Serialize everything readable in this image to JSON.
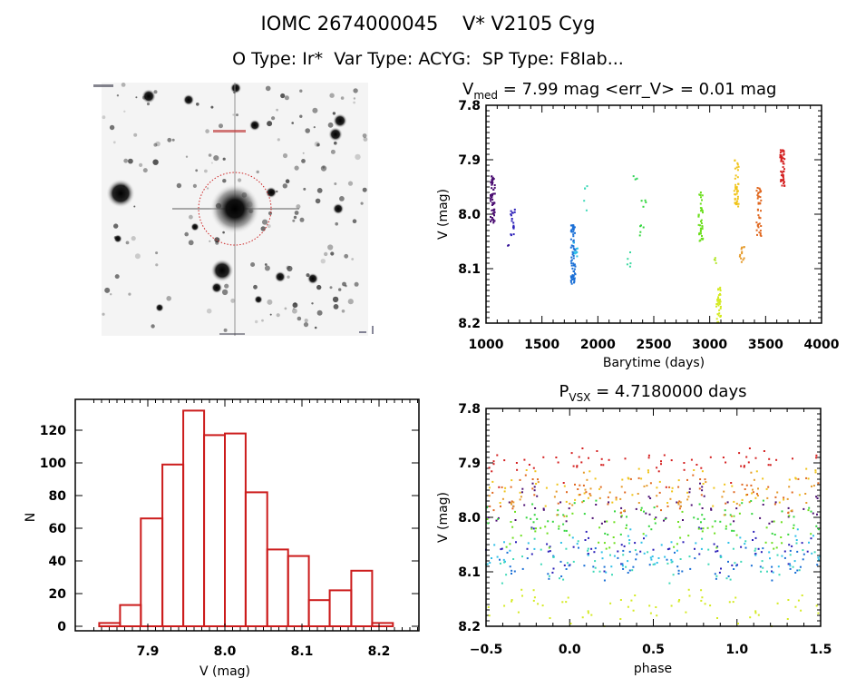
{
  "header": {
    "title": "IOMC 2674000045    V* V2105 Cyg",
    "subtitle": "O Type: Ir*  Var Type: ACYG:  SP Type: F8Iab..."
  },
  "sky_image": {
    "description": "grayscale star field, target star circled in red at center",
    "circle_color": "#cc2222"
  },
  "chart_data": [
    {
      "id": "lightcurve",
      "type": "scatter",
      "title_main": "V",
      "title_sub": "med",
      "title_rest": " = 7.99 mag <err_V> = 0.01 mag",
      "xlabel": "Barytime (days)",
      "ylabel": "V (mag)",
      "xlim": [
        1000,
        4000
      ],
      "ylim": [
        7.8,
        8.2
      ],
      "y_inverted": true,
      "xticks": [
        "1000",
        "1500",
        "2000",
        "2500",
        "3000",
        "3500",
        "4000"
      ],
      "yticks": [
        "7.8",
        "7.9",
        "8.0",
        "8.1",
        "8.2"
      ],
      "groups": [
        {
          "x": 1060,
          "ymin": 7.93,
          "ymax": 8.02,
          "n": 60,
          "color": "#4b0e72"
        },
        {
          "x": 1240,
          "ymin": 7.99,
          "ymax": 8.04,
          "n": 18,
          "color": "#2b1fb8"
        },
        {
          "x": 1190,
          "ymin": 8.05,
          "ymax": 8.06,
          "n": 2,
          "color": "#3a1a9a"
        },
        {
          "x": 1780,
          "ymin": 8.02,
          "ymax": 8.13,
          "n": 70,
          "color": "#1a6fd6"
        },
        {
          "x": 1800,
          "ymin": 8.05,
          "ymax": 8.08,
          "n": 10,
          "color": "#2fc0e8"
        },
        {
          "x": 1890,
          "ymin": 7.94,
          "ymax": 8.0,
          "n": 5,
          "color": "#3fd9b8"
        },
        {
          "x": 2280,
          "ymin": 8.07,
          "ymax": 8.1,
          "n": 5,
          "color": "#3ad8a0"
        },
        {
          "x": 2330,
          "ymin": 7.93,
          "ymax": 7.94,
          "n": 3,
          "color": "#33d45a"
        },
        {
          "x": 2390,
          "ymin": 8.02,
          "ymax": 8.04,
          "n": 5,
          "color": "#35d640"
        },
        {
          "x": 2410,
          "ymin": 7.97,
          "ymax": 7.99,
          "n": 4,
          "color": "#35d640"
        },
        {
          "x": 2920,
          "ymin": 7.96,
          "ymax": 8.05,
          "n": 40,
          "color": "#6ddf1f"
        },
        {
          "x": 3050,
          "ymin": 8.08,
          "ymax": 8.09,
          "n": 4,
          "color": "#b2e62a"
        },
        {
          "x": 3080,
          "ymin": 8.13,
          "ymax": 8.2,
          "n": 35,
          "color": "#d4ea22"
        },
        {
          "x": 3240,
          "ymin": 7.9,
          "ymax": 7.99,
          "n": 40,
          "color": "#f0c419"
        },
        {
          "x": 3290,
          "ymin": 8.06,
          "ymax": 8.09,
          "n": 12,
          "color": "#e59a2a"
        },
        {
          "x": 3440,
          "ymin": 7.95,
          "ymax": 8.04,
          "n": 40,
          "color": "#e06820"
        },
        {
          "x": 3650,
          "ymin": 7.88,
          "ymax": 7.95,
          "n": 50,
          "color": "#d42020"
        }
      ]
    },
    {
      "id": "histogram",
      "type": "bar",
      "title": "",
      "xlabel": "V (mag)",
      "ylabel": "N",
      "xlim": [
        7.83,
        8.25
      ],
      "ylim": [
        -3,
        138
      ],
      "xticks": [
        "7.9",
        "8.0",
        "8.1",
        "8.2"
      ],
      "yticks": [
        "0",
        "20",
        "40",
        "60",
        "80",
        "100",
        "120"
      ],
      "bin_edges": [
        7.837,
        7.864,
        7.891,
        7.919,
        7.946,
        7.973,
        8.0,
        8.027,
        8.055,
        8.082,
        8.109,
        8.136,
        8.164,
        8.191,
        8.218
      ],
      "values": [
        2,
        13,
        66,
        99,
        132,
        117,
        118,
        82,
        47,
        43,
        16,
        22,
        34,
        2
      ],
      "bar_color": "#cc1c1c"
    },
    {
      "id": "phased",
      "type": "scatter",
      "title_main": "P",
      "title_sub": "VSX",
      "title_rest": " = 4.7180000 days",
      "xlabel": "phase",
      "ylabel": "V (mag)",
      "xlim": [
        -0.5,
        1.5
      ],
      "ylim": [
        7.8,
        8.2
      ],
      "y_inverted": true,
      "xticks": [
        "−0.5",
        "0.0",
        "0.5",
        "1.0",
        "1.5"
      ],
      "yticks": [
        "7.8",
        "7.9",
        "8.0",
        "8.1",
        "8.2"
      ],
      "period_days": 4.718,
      "color_sequence": [
        "#4b0e72",
        "#2b1fb8",
        "#1a6fd6",
        "#2fc0e8",
        "#3fd9b8",
        "#35d640",
        "#6ddf1f",
        "#d4ea22",
        "#f0c419",
        "#e59a2a",
        "#e06820",
        "#d42020"
      ]
    }
  ]
}
